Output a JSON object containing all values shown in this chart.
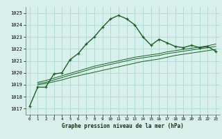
{
  "title": "Graphe pression niveau de la mer (hPa)",
  "bg_color": "#d8f0ec",
  "grid_color": "#aad8d0",
  "line_color": "#1a6020",
  "x_ticks": [
    0,
    1,
    2,
    3,
    4,
    5,
    6,
    7,
    8,
    9,
    10,
    11,
    12,
    13,
    14,
    15,
    16,
    17,
    18,
    19,
    20,
    21,
    22,
    23
  ],
  "y_ticks": [
    1017,
    1018,
    1019,
    1020,
    1021,
    1022,
    1023,
    1024,
    1025
  ],
  "ylim": [
    1016.5,
    1025.5
  ],
  "xlim": [
    -0.5,
    23.5
  ],
  "series1_x": [
    0,
    1,
    2,
    3,
    4,
    5,
    6,
    7,
    8,
    9,
    10,
    11,
    12,
    13,
    14,
    15,
    16,
    17,
    18,
    19,
    20,
    21,
    22,
    23
  ],
  "series1_y": [
    1017.2,
    1018.8,
    1018.8,
    1019.9,
    1020.0,
    1021.1,
    1021.6,
    1022.4,
    1023.0,
    1023.8,
    1024.5,
    1024.8,
    1024.5,
    1024.0,
    1023.0,
    1022.3,
    1022.8,
    1022.5,
    1022.2,
    1022.1,
    1022.3,
    1022.1,
    1022.2,
    1021.8
  ],
  "series2_x": [
    1,
    2,
    3,
    4,
    5,
    6,
    7,
    8,
    9,
    10,
    11,
    12,
    13,
    14,
    15,
    16,
    17,
    18,
    19,
    20,
    21,
    22,
    23
  ],
  "series2_y": [
    1019.0,
    1019.1,
    1019.25,
    1019.4,
    1019.6,
    1019.75,
    1019.9,
    1020.05,
    1020.2,
    1020.35,
    1020.5,
    1020.65,
    1020.8,
    1020.95,
    1021.05,
    1021.15,
    1021.3,
    1021.45,
    1021.55,
    1021.65,
    1021.75,
    1021.85,
    1021.95
  ],
  "series3_x": [
    1,
    2,
    3,
    4,
    5,
    6,
    7,
    8,
    9,
    10,
    11,
    12,
    13,
    14,
    15,
    16,
    17,
    18,
    19,
    20,
    21,
    22,
    23
  ],
  "series3_y": [
    1019.1,
    1019.2,
    1019.4,
    1019.6,
    1019.8,
    1020.0,
    1020.2,
    1020.4,
    1020.55,
    1020.7,
    1020.85,
    1021.0,
    1021.15,
    1021.25,
    1021.35,
    1021.45,
    1021.6,
    1021.7,
    1021.8,
    1021.9,
    1022.0,
    1022.1,
    1022.2
  ],
  "series4_x": [
    1,
    2,
    3,
    4,
    5,
    6,
    7,
    8,
    9,
    10,
    11,
    12,
    13,
    14,
    15,
    16,
    17,
    18,
    19,
    20,
    21,
    22,
    23
  ],
  "series4_y": [
    1019.2,
    1019.35,
    1019.55,
    1019.75,
    1019.95,
    1020.15,
    1020.35,
    1020.55,
    1020.7,
    1020.85,
    1021.0,
    1021.15,
    1021.3,
    1021.4,
    1021.5,
    1021.6,
    1021.75,
    1021.85,
    1021.95,
    1022.05,
    1022.15,
    1022.25,
    1022.4
  ]
}
